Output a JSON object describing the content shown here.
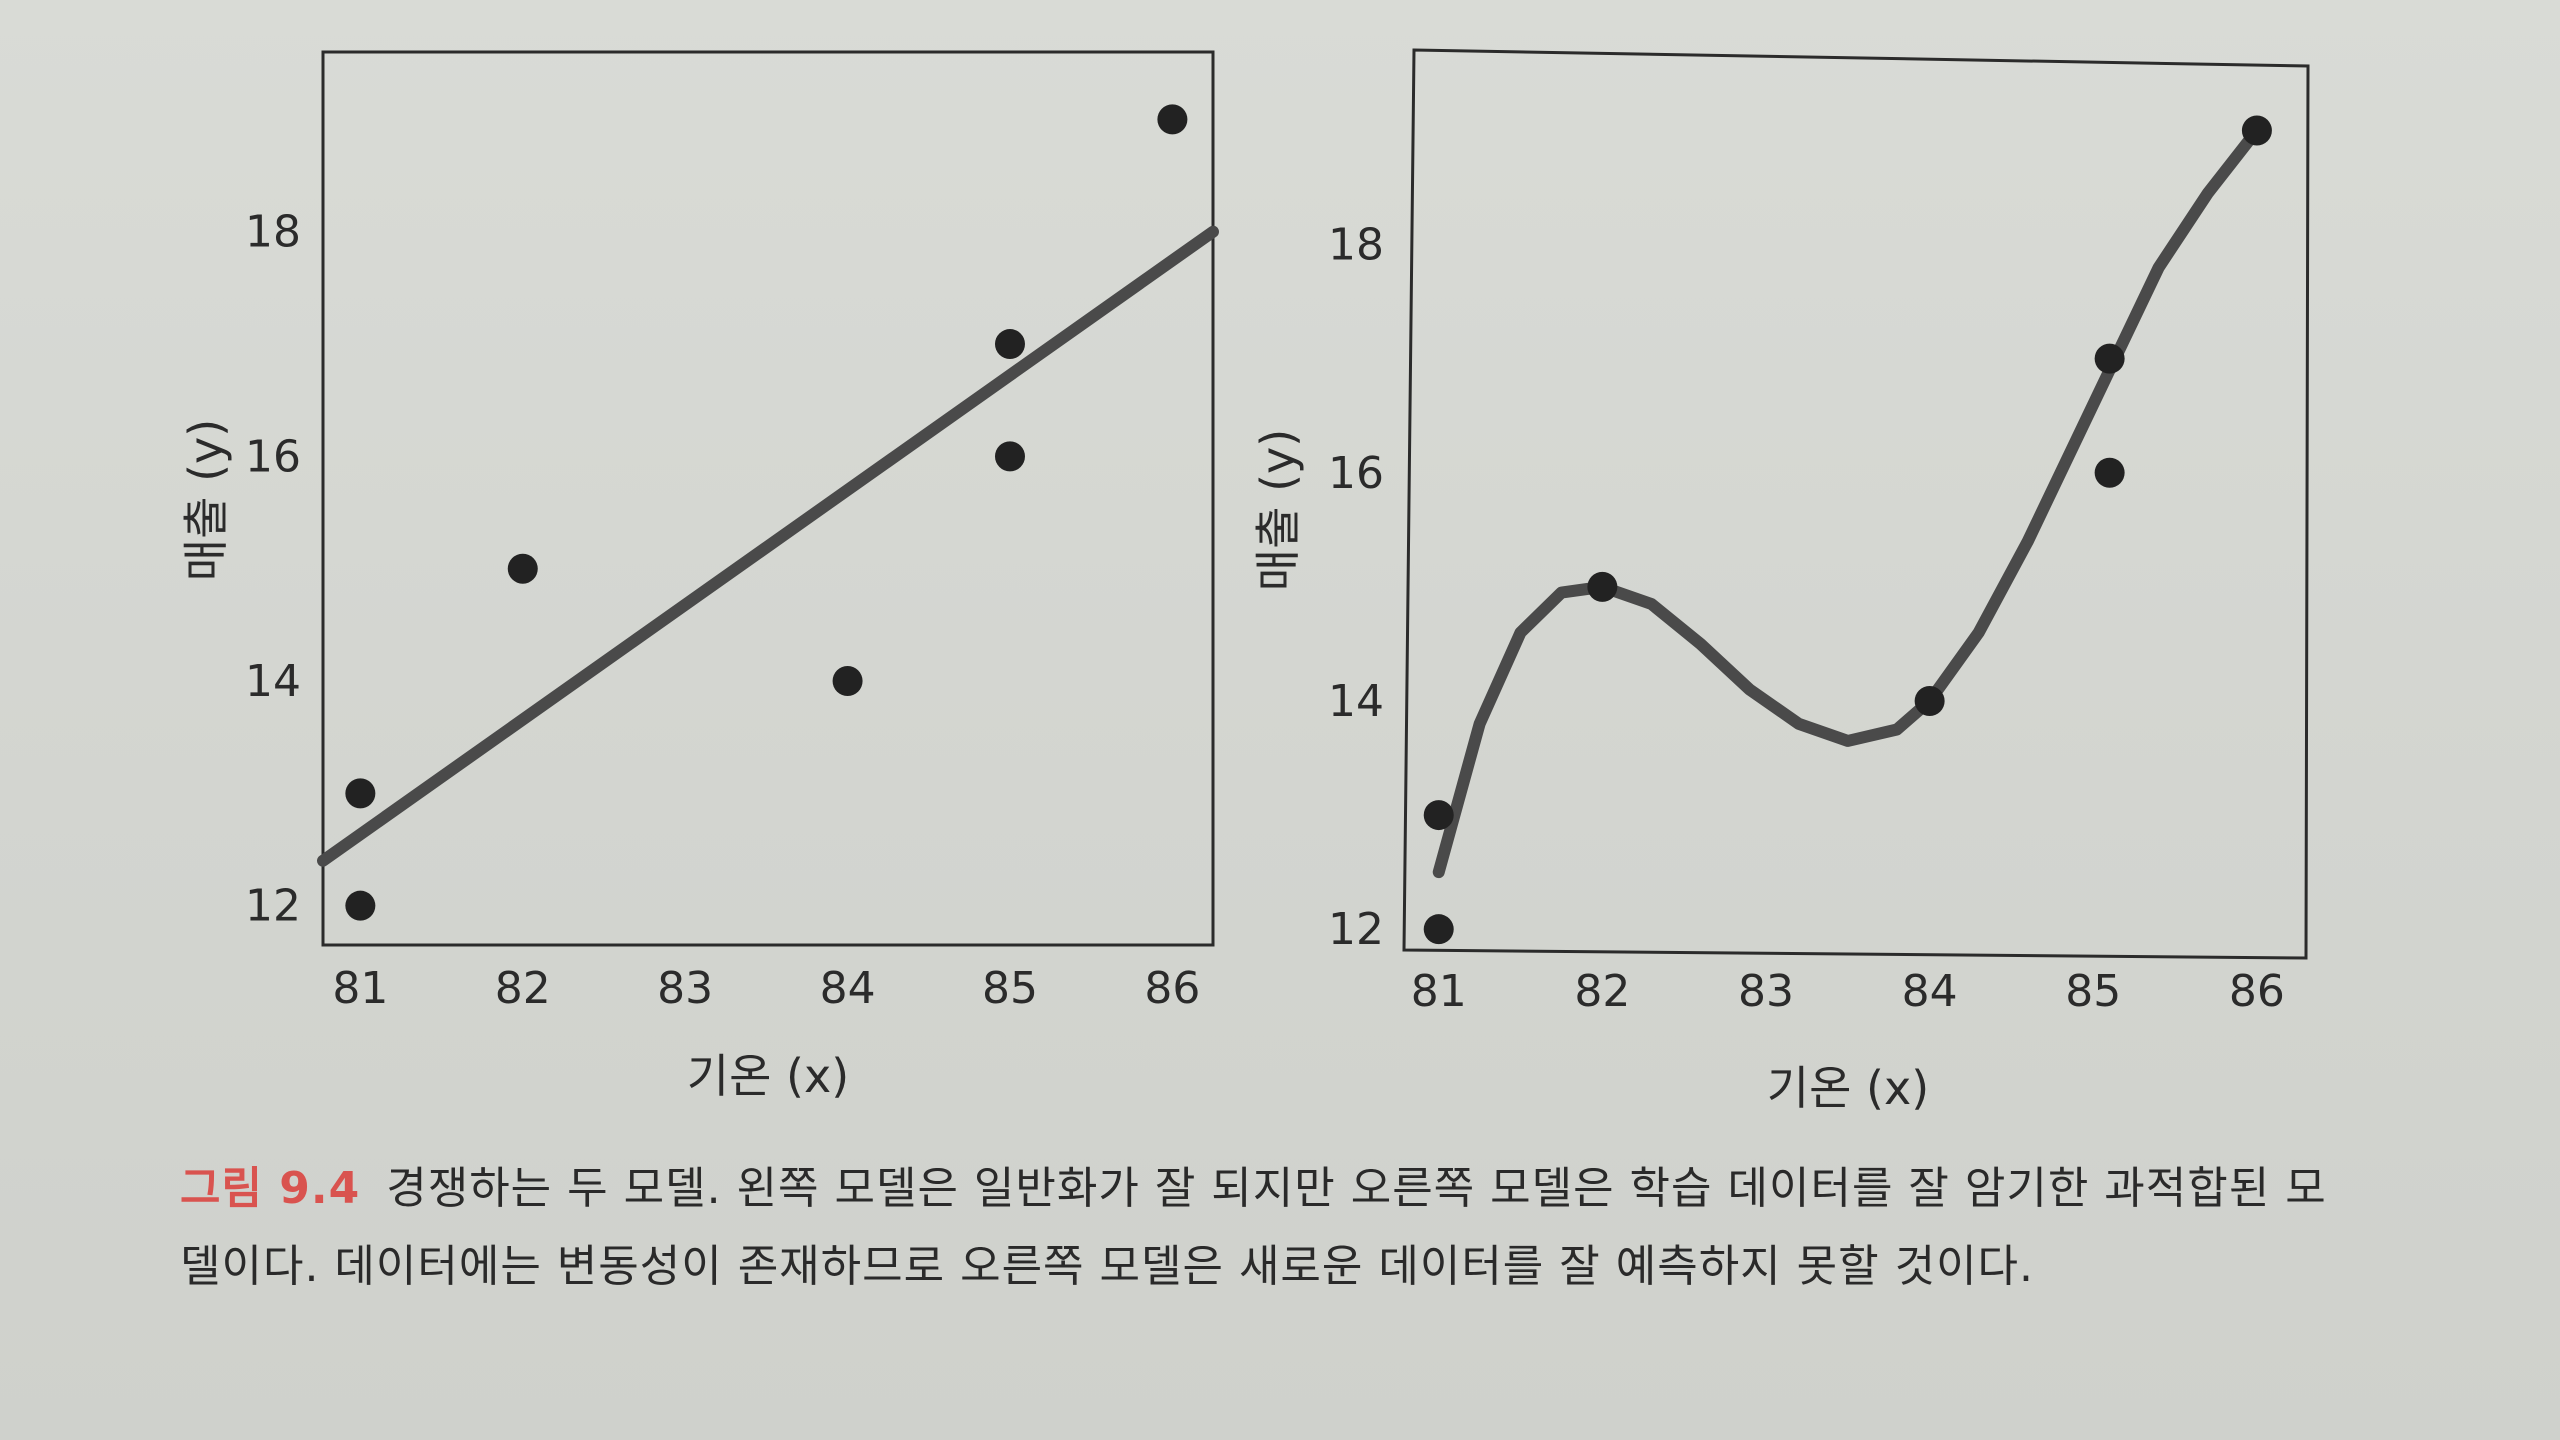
{
  "colors": {
    "ink": "#2b2b2b",
    "curve": "#4a4a4a",
    "caption_label": "#d9534f"
  },
  "chart_data": [
    {
      "type": "scatter",
      "model": "linear",
      "xlabel": "기온 (x)",
      "ylabel": "매출 (y)",
      "x_ticks": [
        81,
        82,
        83,
        84,
        85,
        86
      ],
      "y_ticks": [
        12,
        14,
        16,
        18
      ],
      "xlim": [
        80.77,
        86.25
      ],
      "ylim": [
        11.65,
        19.6
      ],
      "points": [
        {
          "x": 81,
          "y": 12
        },
        {
          "x": 81,
          "y": 13
        },
        {
          "x": 82,
          "y": 15
        },
        {
          "x": 84,
          "y": 14
        },
        {
          "x": 85,
          "y": 16
        },
        {
          "x": 85,
          "y": 17
        },
        {
          "x": 86,
          "y": 19
        }
      ],
      "fit_line": [
        {
          "x": 80.77,
          "y": 12.4
        },
        {
          "x": 86.25,
          "y": 18.0
        }
      ]
    },
    {
      "type": "scatter",
      "model": "polynomial",
      "xlabel": "기온 (x)",
      "ylabel": "매출 (y)",
      "x_ticks": [
        81,
        82,
        83,
        84,
        85,
        86
      ],
      "y_ticks": [
        12,
        14,
        16,
        18
      ],
      "xlim": [
        80.8,
        86.3
      ],
      "ylim": [
        11.8,
        19.6
      ],
      "points": [
        {
          "x": 81,
          "y": 12
        },
        {
          "x": 81,
          "y": 13
        },
        {
          "x": 82,
          "y": 15
        },
        {
          "x": 84,
          "y": 14
        },
        {
          "x": 85.1,
          "y": 16
        },
        {
          "x": 85.1,
          "y": 17
        },
        {
          "x": 86,
          "y": 19
        }
      ],
      "fit_curve": [
        {
          "x": 81.0,
          "y": 12.5
        },
        {
          "x": 81.25,
          "y": 13.8
        },
        {
          "x": 81.5,
          "y": 14.6
        },
        {
          "x": 81.75,
          "y": 14.95
        },
        {
          "x": 82.0,
          "y": 15.0
        },
        {
          "x": 82.3,
          "y": 14.85
        },
        {
          "x": 82.6,
          "y": 14.5
        },
        {
          "x": 82.9,
          "y": 14.1
        },
        {
          "x": 83.2,
          "y": 13.8
        },
        {
          "x": 83.5,
          "y": 13.65
        },
        {
          "x": 83.8,
          "y": 13.75
        },
        {
          "x": 84.0,
          "y": 14.0
        },
        {
          "x": 84.3,
          "y": 14.6
        },
        {
          "x": 84.6,
          "y": 15.4
        },
        {
          "x": 84.9,
          "y": 16.3
        },
        {
          "x": 85.1,
          "y": 16.9
        },
        {
          "x": 85.4,
          "y": 17.8
        },
        {
          "x": 85.7,
          "y": 18.45
        },
        {
          "x": 86.0,
          "y": 19.0
        }
      ]
    }
  ],
  "caption": {
    "label": "그림 9.4",
    "text": "경쟁하는 두 모델. 왼쪽 모델은 일반화가 잘 되지만 오른쪽 모델은 학습 데이터를 잘 암기한 과적합된 모델이다. 데이터에는 변동성이 존재하므로 오른쪽 모델은 새로운 데이터를 잘 예측하지 못할 것이다."
  }
}
